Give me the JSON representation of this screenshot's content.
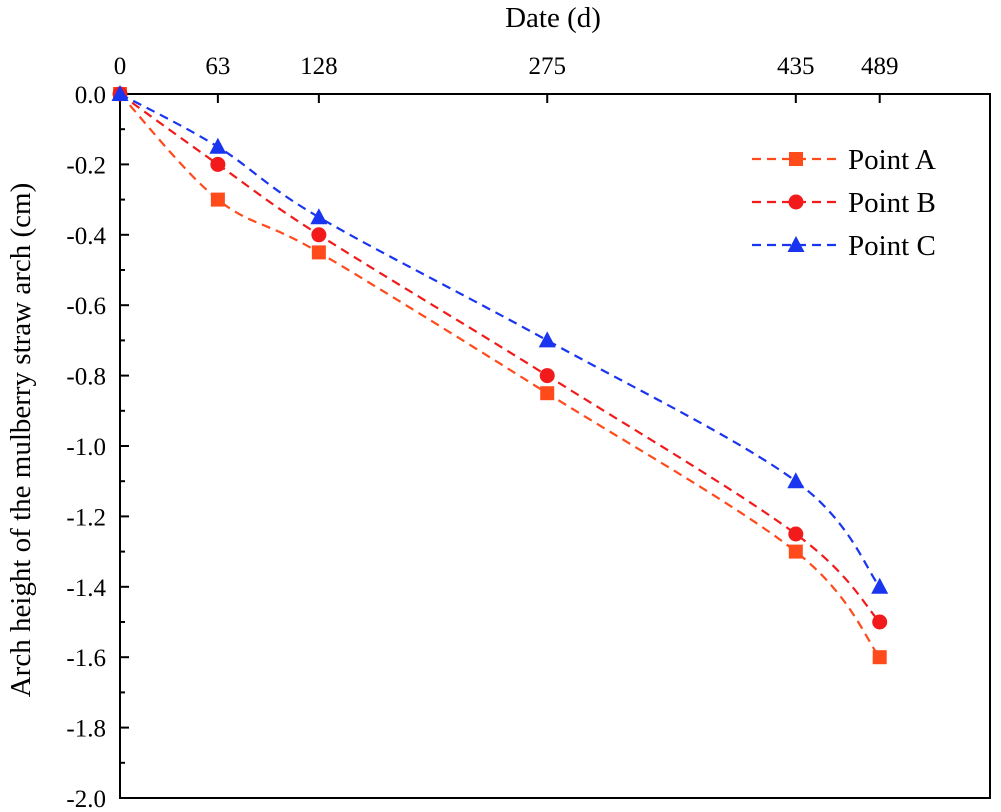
{
  "chart_data": {
    "type": "line",
    "title": "",
    "xlabel": "Date (d)",
    "ylabel": "Arch height of the mulberry straw arch (cm)",
    "x_axis_position": "top",
    "x": [
      0,
      63,
      128,
      275,
      435,
      489
    ],
    "x_tick_labels": [
      "0",
      "63",
      "128",
      "275",
      "435",
      "489"
    ],
    "xlim": [
      0,
      560
    ],
    "ylim": [
      -2.0,
      0.0
    ],
    "y_ticks": [
      0.0,
      -0.2,
      -0.4,
      -0.6,
      -0.8,
      -1.0,
      -1.2,
      -1.4,
      -1.6,
      -1.8,
      -2.0
    ],
    "y_tick_labels": [
      "0.0",
      "-0.2",
      "-0.4",
      "-0.6",
      "-0.8",
      "-1.0",
      "-1.2",
      "-1.4",
      "-1.6",
      "-1.8",
      "-2.0"
    ],
    "grid": false,
    "legend_position": "top-right",
    "series": [
      {
        "name": "Point A",
        "marker": "square",
        "line_style": "dashed",
        "color": "#ff4a1c",
        "values": [
          0.0,
          -0.3,
          -0.45,
          -0.85,
          -1.3,
          -1.6
        ]
      },
      {
        "name": "Point B",
        "marker": "circle",
        "line_style": "dashed",
        "color": "#f21a1a",
        "values": [
          0.0,
          -0.2,
          -0.4,
          -0.8,
          -1.25,
          -1.5
        ]
      },
      {
        "name": "Point C",
        "marker": "triangle",
        "line_style": "dashed",
        "color": "#1a35f0",
        "values": [
          0.0,
          -0.15,
          -0.35,
          -0.7,
          -1.1,
          -1.4
        ]
      }
    ]
  }
}
